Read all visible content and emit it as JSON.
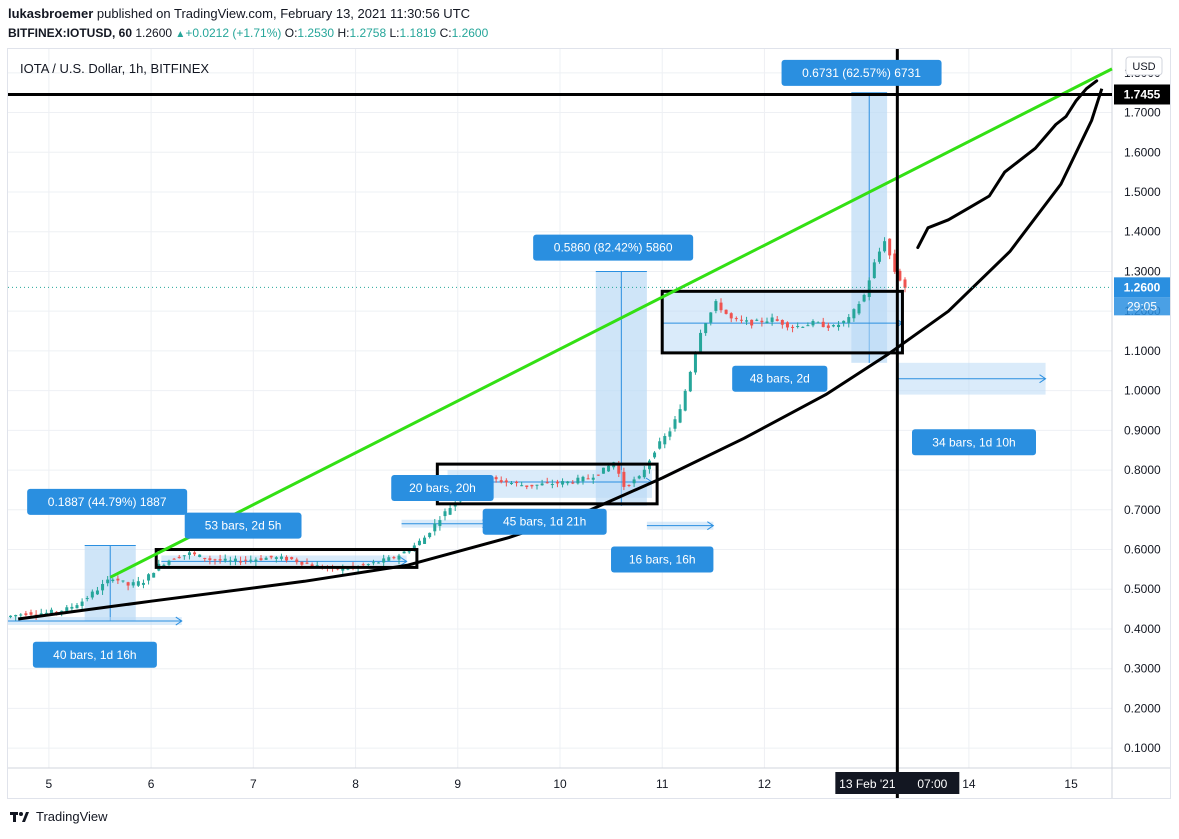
{
  "header": {
    "author": "lukasbroemer",
    "published_text": "published on TradingView.com, February 13, 2021 11:30:56 UTC",
    "symbol": "BITFINEX:IOTUSD, 60",
    "last": "1.2600",
    "change_arrow": "▲",
    "change": "+0.0212 (+1.71%)",
    "o_label": "O:",
    "o": "1.2530",
    "h_label": "H:",
    "h": "1.2758",
    "l_label": "L:",
    "l": "1.1819",
    "c_label": "C:",
    "c": "1.2600"
  },
  "chart_title": "IOTA / U.S. Dollar, 1h, BITFINEX",
  "currency_badge": "USD",
  "footer": {
    "brand": "TradingView",
    "logo_icon": "tradingview-logo-icon"
  },
  "colors": {
    "green_line": "#33e014",
    "black": "#000000",
    "up": "#26a69a",
    "down": "#ef5350",
    "label_blue": "#2a8fe0",
    "range_fill": "#bbdaf5",
    "price_tag": "#2a8fe0"
  },
  "chart_data": {
    "type": "candlestick",
    "title": "IOTA / U.S. Dollar, 1h, BITFINEX",
    "y_range": [
      0.05,
      1.86
    ],
    "x_range": [
      4.6,
      15.4
    ],
    "y_ticks": [
      "0.1000",
      "0.2000",
      "0.3000",
      "0.4000",
      "0.5000",
      "0.6000",
      "0.7000",
      "0.8000",
      "0.9000",
      "1.0000",
      "1.1000",
      "1.2000",
      "1.3000",
      "1.4000",
      "1.5000",
      "1.6000",
      "1.7000",
      "1.8000"
    ],
    "x_ticks": [
      {
        "x": 5,
        "label": "5"
      },
      {
        "x": 6,
        "label": "6"
      },
      {
        "x": 7,
        "label": "7"
      },
      {
        "x": 8,
        "label": "8"
      },
      {
        "x": 9,
        "label": "9"
      },
      {
        "x": 10,
        "label": "10"
      },
      {
        "x": 11,
        "label": "11"
      },
      {
        "x": 12,
        "label": "12"
      },
      {
        "x": 14,
        "label": "14"
      },
      {
        "x": 15,
        "label": "15"
      }
    ],
    "crosshair": {
      "x": 13.3,
      "date_label": "13 Feb '21",
      "time_label": "07:00"
    },
    "horizontal_line": {
      "y": 1.7455,
      "label": "1.7455"
    },
    "last_price": {
      "y": 1.26,
      "label": "1.2600",
      "countdown": "29:05"
    },
    "price_path": [
      [
        4.6,
        0.43
      ],
      [
        4.8,
        0.44
      ],
      [
        5.0,
        0.44
      ],
      [
        5.2,
        0.45
      ],
      [
        5.35,
        0.47
      ],
      [
        5.5,
        0.5
      ],
      [
        5.65,
        0.53
      ],
      [
        5.8,
        0.51
      ],
      [
        5.95,
        0.52
      ],
      [
        6.1,
        0.56
      ],
      [
        6.25,
        0.58
      ],
      [
        6.4,
        0.59
      ],
      [
        6.6,
        0.575
      ],
      [
        6.8,
        0.57
      ],
      [
        7.0,
        0.575
      ],
      [
        7.2,
        0.58
      ],
      [
        7.4,
        0.575
      ],
      [
        7.6,
        0.56
      ],
      [
        7.8,
        0.55
      ],
      [
        8.0,
        0.555
      ],
      [
        8.2,
        0.565
      ],
      [
        8.4,
        0.58
      ],
      [
        8.55,
        0.6
      ],
      [
        8.7,
        0.63
      ],
      [
        8.85,
        0.68
      ],
      [
        9.0,
        0.72
      ],
      [
        9.15,
        0.76
      ],
      [
        9.3,
        0.78
      ],
      [
        9.5,
        0.77
      ],
      [
        9.7,
        0.76
      ],
      [
        9.9,
        0.765
      ],
      [
        10.1,
        0.77
      ],
      [
        10.3,
        0.78
      ],
      [
        10.45,
        0.8
      ],
      [
        10.55,
        0.82
      ],
      [
        10.65,
        0.76
      ],
      [
        10.8,
        0.78
      ],
      [
        10.95,
        0.85
      ],
      [
        11.1,
        0.9
      ],
      [
        11.2,
        0.95
      ],
      [
        11.3,
        1.05
      ],
      [
        11.4,
        1.15
      ],
      [
        11.55,
        1.22
      ],
      [
        11.7,
        1.18
      ],
      [
        11.9,
        1.17
      ],
      [
        12.1,
        1.18
      ],
      [
        12.3,
        1.16
      ],
      [
        12.5,
        1.17
      ],
      [
        12.7,
        1.16
      ],
      [
        12.85,
        1.18
      ],
      [
        13.0,
        1.24
      ],
      [
        13.1,
        1.32
      ],
      [
        13.2,
        1.38
      ],
      [
        13.3,
        1.3
      ],
      [
        13.4,
        1.26
      ]
    ],
    "green_trendline": [
      [
        5.6,
        0.53
      ],
      [
        15.4,
        1.81
      ]
    ],
    "black_curve": [
      [
        4.7,
        0.425
      ],
      [
        6.0,
        0.47
      ],
      [
        7.5,
        0.52
      ],
      [
        8.5,
        0.56
      ],
      [
        9.5,
        0.63
      ],
      [
        10.3,
        0.7
      ],
      [
        11.0,
        0.78
      ],
      [
        11.8,
        0.88
      ],
      [
        12.6,
        0.99
      ],
      [
        13.2,
        1.09
      ],
      [
        13.8,
        1.2
      ],
      [
        14.4,
        1.35
      ],
      [
        14.9,
        1.52
      ],
      [
        15.2,
        1.68
      ],
      [
        15.3,
        1.76
      ]
    ],
    "black_scribble": [
      [
        13.5,
        1.36
      ],
      [
        13.6,
        1.41
      ],
      [
        13.8,
        1.43
      ],
      [
        14.0,
        1.46
      ],
      [
        14.2,
        1.49
      ],
      [
        14.35,
        1.55
      ],
      [
        14.5,
        1.58
      ],
      [
        14.65,
        1.61
      ],
      [
        14.75,
        1.64
      ],
      [
        14.85,
        1.67
      ],
      [
        14.95,
        1.69
      ],
      [
        15.05,
        1.73
      ],
      [
        15.15,
        1.76
      ],
      [
        15.25,
        1.78
      ]
    ],
    "boxes": [
      {
        "x0": 6.05,
        "x1": 8.6,
        "y0": 0.555,
        "y1": 0.6
      },
      {
        "x0": 8.8,
        "x1": 10.95,
        "y0": 0.715,
        "y1": 0.815
      },
      {
        "x0": 11.0,
        "x1": 13.35,
        "y0": 1.095,
        "y1": 1.25
      }
    ],
    "range_measures": [
      {
        "x0": 5.35,
        "x1": 5.85,
        "y0": 0.42,
        "y1": 0.61,
        "label": "0.1887 (44.79%) 1887",
        "lx": 5.57,
        "ly": 0.72
      },
      {
        "x0": 10.35,
        "x1": 10.85,
        "y0": 0.71,
        "y1": 1.3,
        "label": "0.5860 (82.42%) 5860",
        "lx": 10.52,
        "ly": 1.36
      },
      {
        "x0": 12.85,
        "x1": 13.2,
        "y0": 1.07,
        "y1": 1.75,
        "label": "0.6731 (62.57%) 6731",
        "lx": 12.95,
        "ly": 1.8
      }
    ],
    "date_ranges": [
      {
        "x0": 4.6,
        "x1": 6.3,
        "y": 0.42,
        "y0": 0.41,
        "y1": 0.43,
        "label": "40 bars, 1d 16h",
        "lx": 5.45,
        "ly": 0.335
      },
      {
        "x0": 6.1,
        "x1": 8.5,
        "y": 0.57,
        "y0": 0.56,
        "y1": 0.585,
        "label": "53 bars, 2d 5h",
        "lx": 6.9,
        "ly": 0.66
      },
      {
        "x0": 8.45,
        "x1": 9.3,
        "y": 0.665,
        "y0": 0.655,
        "y1": 0.675,
        "label": "20 bars, 20h",
        "lx": 8.85,
        "ly": 0.755
      },
      {
        "x0": 8.9,
        "x1": 10.9,
        "y": 0.77,
        "y0": 0.73,
        "y1": 0.8,
        "label": "45 bars, 1d 21h",
        "lx": 9.85,
        "ly": 0.67
      },
      {
        "x0": 10.85,
        "x1": 11.5,
        "y": 0.66,
        "y0": 0.65,
        "y1": 0.67,
        "label": "16 bars, 16h",
        "lx": 11.0,
        "ly": 0.575
      },
      {
        "x0": 11.0,
        "x1": 13.35,
        "y": 1.17,
        "y0": 1.095,
        "y1": 1.25,
        "label": "48 bars, 2d",
        "lx": 12.15,
        "ly": 1.03
      },
      {
        "x0": 13.3,
        "x1": 14.75,
        "y": 1.03,
        "y0": 0.99,
        "y1": 1.07,
        "label": "34 bars, 1d 10h",
        "lx": 14.05,
        "ly": 0.87
      }
    ]
  }
}
